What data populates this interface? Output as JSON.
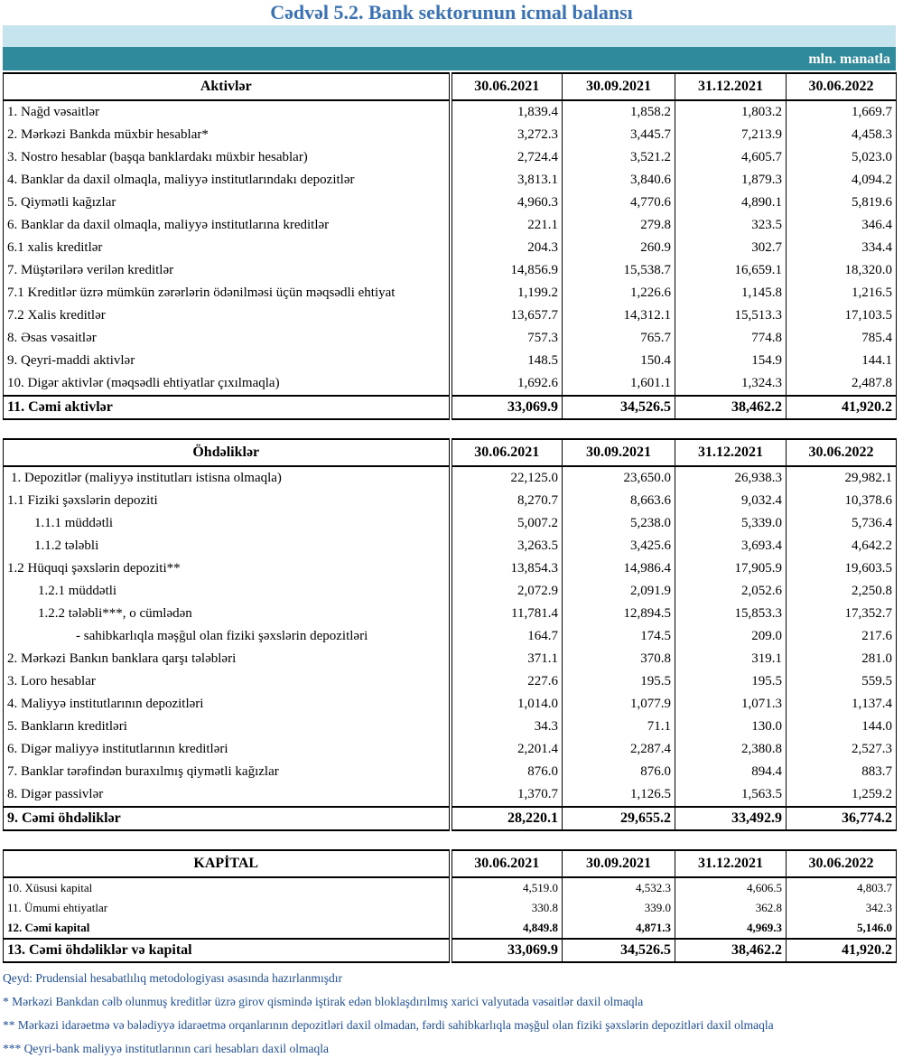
{
  "title": "Cədvəl 5.2. Bank sektorunun icmal balansı",
  "unit": "mln. manatla",
  "sections": [
    {
      "header": [
        "Aktivlər",
        "30.06.2021",
        "30.09.2021",
        "31.12.2021",
        "30.06.2022"
      ],
      "rows": [
        [
          "1. Nağd vəsaitlər",
          "1,839.4",
          "1,858.2",
          "1,803.2",
          "1,669.7"
        ],
        [
          "2. Mərkəzi Bankda müxbir hesablar*",
          "3,272.3",
          "3,445.7",
          "7,213.9",
          "4,458.3"
        ],
        [
          "3. Nostro hesablar (başqa banklardakı müxbir hesablar)",
          "2,724.4",
          "3,521.2",
          "4,605.7",
          "5,023.0"
        ],
        [
          "4. Banklar da daxil olmaqla, maliyyə institutlarındakı depozitlər",
          "3,813.1",
          "3,840.6",
          "1,879.3",
          "4,094.2"
        ],
        [
          "5. Qiymətli kağızlar",
          "4,960.3",
          "4,770.6",
          "4,890.1",
          "5,819.6"
        ],
        [
          "6. Banklar da daxil olmaqla, maliyyə institutlarına kreditlər",
          "221.1",
          "279.8",
          "323.5",
          "346.4"
        ],
        [
          "6.1 xalis kreditlər",
          "204.3",
          "260.9",
          "302.7",
          "334.4"
        ],
        [
          "7. Müştərilərə verilən kreditlər",
          "14,856.9",
          "15,538.7",
          "16,659.1",
          "18,320.0"
        ],
        [
          "7.1 Kreditlər üzrə mümkün zərərlərin ödənilməsi üçün məqsədli ehtiyat",
          "1,199.2",
          "1,226.6",
          "1,145.8",
          "1,216.5"
        ],
        [
          "7.2 Xalis kreditlər",
          "13,657.7",
          "14,312.1",
          "15,513.3",
          "17,103.5"
        ],
        [
          "8.  Əsas vəsaitlər",
          "757.3",
          "765.7",
          "774.8",
          "785.4"
        ],
        [
          "9. Qeyri-maddi aktivlər",
          "148.5",
          "150.4",
          "154.9",
          "144.1"
        ],
        [
          "10. Digər aktivlər (məqsədli ehtiyatlar çıxılmaqla)",
          "1,692.6",
          "1,601.1",
          "1,324.3",
          "2,487.8"
        ]
      ],
      "totals": [
        [
          "11. Cəmi aktivlər",
          "33,069.9",
          "34,526.5",
          "38,462.2",
          "41,920.2"
        ]
      ]
    },
    {
      "header": [
        "Öhdəliklər",
        "30.06.2021",
        "30.09.2021",
        "31.12.2021",
        "30.06.2022"
      ],
      "rows": [
        [
          "1. Depozitlər (maliyyə institutları istisna olmaqla)",
          "22,125.0",
          "23,650.0",
          "26,938.3",
          "29,982.1"
        ],
        [
          "1.1 Fiziki şəxslərin depoziti",
          "8,270.7",
          "8,663.6",
          "9,032.4",
          "10,378.6"
        ],
        [
          "1.1.1 müddətli",
          "5,007.2",
          "5,238.0",
          "5,339.0",
          "5,736.4"
        ],
        [
          "1.1.2 tələbli",
          "3,263.5",
          "3,425.6",
          "3,693.4",
          "4,642.2"
        ],
        [
          "1.2 Hüquqi şəxslərin depoziti**",
          "13,854.3",
          "14,986.4",
          "17,905.9",
          "19,603.5"
        ],
        [
          "1.2.1 müddətli",
          "2,072.9",
          "2,091.9",
          "2,052.6",
          "2,250.8"
        ],
        [
          "1.2.2 tələbli***, o cümlədən",
          "11,781.4",
          "12,894.5",
          "15,853.3",
          "17,352.7"
        ],
        [
          "- sahibkarlıqla məşğul olan fiziki şəxslərin depozitləri",
          "164.7",
          "174.5",
          "209.0",
          "217.6"
        ],
        [
          "2. Mərkəzi Bankın banklara qarşı tələbləri",
          "371.1",
          "370.8",
          "319.1",
          "281.0"
        ],
        [
          "3. Loro hesablar",
          "227.6",
          "195.5",
          "195.5",
          "559.5"
        ],
        [
          "4. Maliyyə institutlarının  depozitləri",
          "1,014.0",
          "1,077.9",
          "1,071.3",
          "1,137.4"
        ],
        [
          "5. Bankların kreditləri",
          "34.3",
          "71.1",
          "130.0",
          "144.0"
        ],
        [
          "6. Digər maliyyə institutlarının kreditləri",
          "2,201.4",
          "2,287.4",
          "2,380.8",
          "2,527.3"
        ],
        [
          "7. Banklar tərəfindən buraxılmış qiymətli kağızlar",
          "876.0",
          "876.0",
          "894.4",
          "883.7"
        ],
        [
          "8. Digər passivlər",
          "1,370.7",
          "1,126.5",
          "1,563.5",
          "1,259.2"
        ]
      ],
      "totals": [
        [
          "9. Cəmi öhdəliklər",
          "28,220.1",
          "29,655.2",
          "33,492.9",
          "36,774.2"
        ]
      ]
    },
    {
      "header": [
        "KAPİTAL",
        "30.06.2021",
        "30.09.2021",
        "31.12.2021",
        "30.06.2022"
      ],
      "rows": [
        [
          "10. Xüsusi kapital",
          "4,519.0",
          "4,532.3",
          "4,606.5",
          "4,803.7"
        ],
        [
          "11. Ümumi ehtiyatlar",
          "330.8",
          "339.0",
          "362.8",
          "342.3"
        ]
      ],
      "totals": [
        [
          "12. Cəmi kapital",
          "4,849.8",
          "4,871.3",
          "4,969.3",
          "5,146.0"
        ],
        [
          "13. Cəmi öhdəliklər və kapital",
          "33,069.9",
          "34,526.5",
          "38,462.2",
          "41,920.2"
        ]
      ]
    }
  ],
  "notes": [
    "Qeyd: Prudensial hesabatlılıq metodologiyası əsasında hazırlanmışdır",
    "* Mərkəzi Bankdan cəlb olunmuş kreditlər üzrə girov qismində iştirak edən bloklaşdırılmış xarici valyutada vəsaitlər daxil olmaqla",
    "** Mərkəzi idarəetmə və bələdiyyə idarəetmə orqanlarının depozitləri daxil olmadan, fərdi sahibkarlıqla məşğul olan fiziki şəxslərin depozitləri daxil olmaqla",
    "*** Qeyri-bank maliyyə institutlarının cari hesabları daxil olmaqla"
  ]
}
